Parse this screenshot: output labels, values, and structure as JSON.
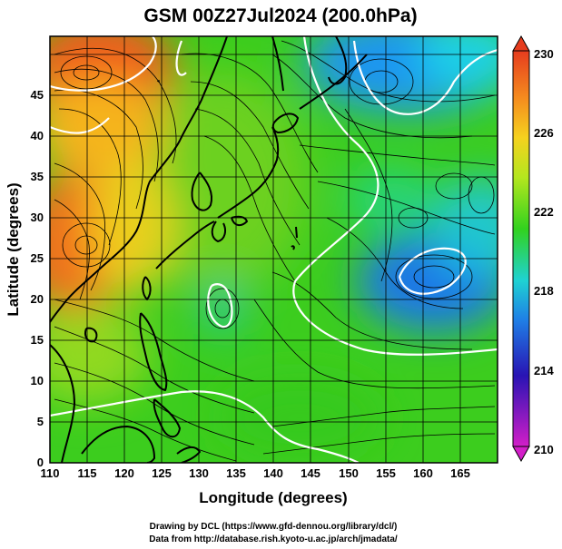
{
  "title": "GSM 00Z27Jul2024 (200.0hPa)",
  "x_axis": {
    "label": "Longitude (degrees)",
    "range": [
      110,
      170
    ],
    "ticks": [
      110,
      115,
      120,
      125,
      130,
      135,
      140,
      145,
      150,
      155,
      160,
      165
    ]
  },
  "y_axis": {
    "label": "Latitude  (degrees)",
    "range": [
      0,
      50
    ],
    "ticks": [
      0,
      5,
      10,
      15,
      20,
      25,
      30,
      35,
      40,
      45
    ]
  },
  "colorbar": {
    "range": [
      210,
      230
    ],
    "ticks": [
      210,
      214,
      218,
      222,
      226,
      230
    ],
    "colors": [
      "#d21ec8",
      "#2814b4",
      "#1f7fe6",
      "#1fd2d2",
      "#32d21e",
      "#b4e61e",
      "#f5d21e",
      "#f58c1e",
      "#e63c1e"
    ]
  },
  "credits": [
    "Drawing by DCL (https://www.gfd-dennou.org/library/dcl/)",
    "Data from http://database.rish.kyoto-u.ac.jp/arch/jmadata/"
  ],
  "field_colors": {
    "warm": "#f0641e",
    "mild": "#f5c81e",
    "base": "#3cd21e",
    "cool": "#1ea0f0",
    "cold": "#1e6ee6",
    "contour": "#ffffff",
    "coast": "#000000"
  },
  "features": [
    {
      "name": "warm-anomaly-northwest",
      "lon": 115,
      "lat": 47,
      "type": "high"
    },
    {
      "name": "warm-anomaly-south-china",
      "lon": 112,
      "lat": 28,
      "type": "high"
    },
    {
      "name": "cold-core-northeast",
      "lon": 157,
      "lat": 47,
      "type": "low"
    },
    {
      "name": "cold-core-east",
      "lon": 158,
      "lat": 23,
      "type": "low"
    },
    {
      "name": "cyclonic-eddy",
      "lon": 132,
      "lat": 21,
      "type": "eddy"
    }
  ]
}
